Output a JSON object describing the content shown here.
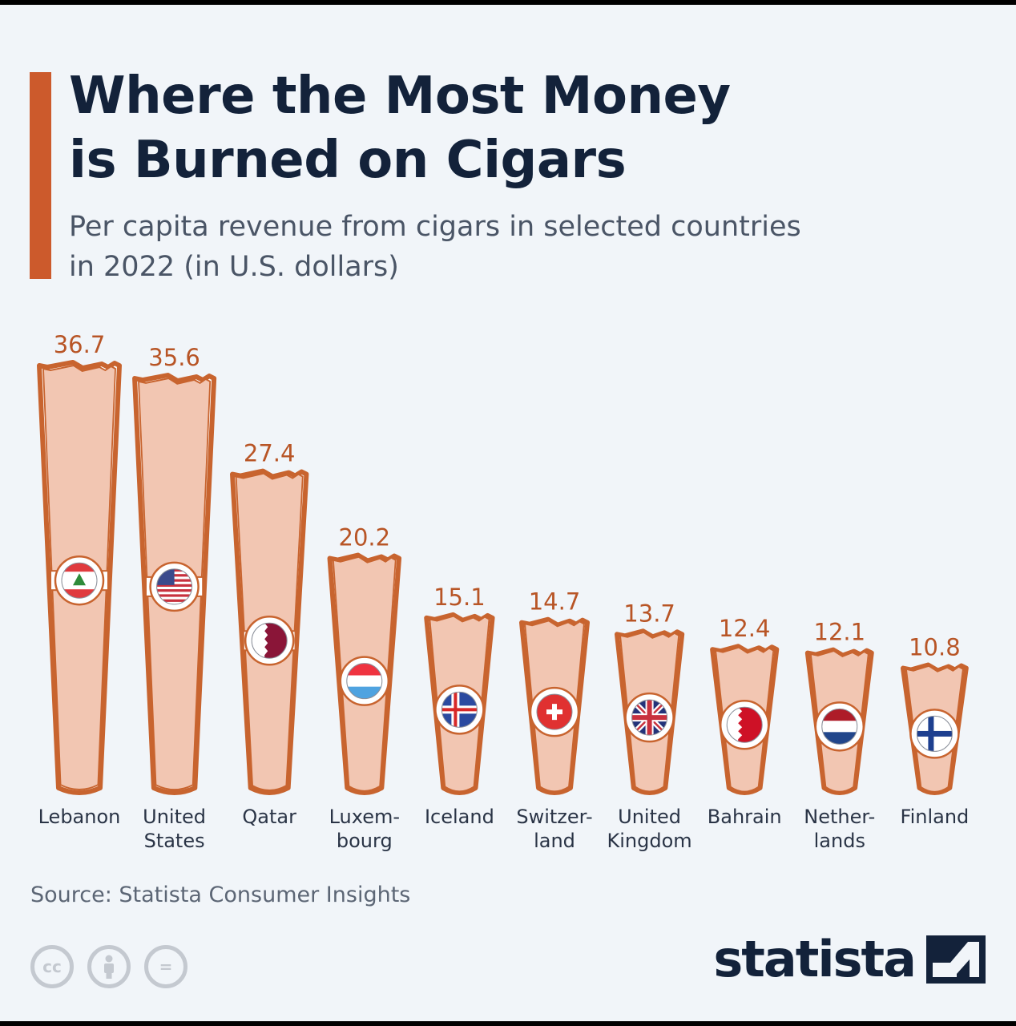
{
  "header": {
    "title_line1": "Where the Most Money",
    "title_line2": "is Burned on Cigars",
    "subtitle_line1": "Per capita revenue from cigars in selected countries",
    "subtitle_line2": "in 2022 (in U.S. dollars)"
  },
  "chart_data": {
    "type": "bar",
    "title": "Where the Most Money is Burned on Cigars",
    "subtitle": "Per capita revenue from cigars in selected countries in 2022 (in U.S. dollars)",
    "categories": [
      {
        "label": [
          "Lebanon"
        ],
        "flag": "lebanon-flag"
      },
      {
        "label": [
          "United",
          "States"
        ],
        "flag": "us-flag"
      },
      {
        "label": [
          "Qatar"
        ],
        "flag": "qatar-flag"
      },
      {
        "label": [
          "Luxem-",
          "bourg"
        ],
        "flag": "luxembourg-flag"
      },
      {
        "label": [
          "Iceland"
        ],
        "flag": "iceland-flag"
      },
      {
        "label": [
          "Switzer-",
          "land"
        ],
        "flag": "switzerland-flag"
      },
      {
        "label": [
          "United",
          "Kingdom"
        ],
        "flag": "uk-flag"
      },
      {
        "label": [
          "Bahrain"
        ],
        "flag": "bahrain-flag"
      },
      {
        "label": [
          "Nether-",
          "lands"
        ],
        "flag": "netherlands-flag"
      },
      {
        "label": [
          "Finland"
        ],
        "flag": "finland-flag"
      }
    ],
    "values": [
      36.7,
      35.6,
      27.4,
      20.2,
      15.1,
      14.7,
      13.7,
      12.4,
      12.1,
      10.8
    ],
    "ylim": [
      0,
      36.7
    ],
    "colors": {
      "cigar_fill": "#f2c6b2",
      "cigar_stroke": "#c8642f",
      "value_label": "#b85526",
      "accent": "#cc5a2c"
    },
    "grid": false,
    "legend": "none"
  },
  "footer": {
    "source": "Source: Statista Consumer Insights",
    "brand": "statista",
    "license_icons": [
      "cc-icon",
      "attribution-icon",
      "no-derivatives-icon"
    ],
    "cc_label": "cc",
    "nd_label": "="
  }
}
